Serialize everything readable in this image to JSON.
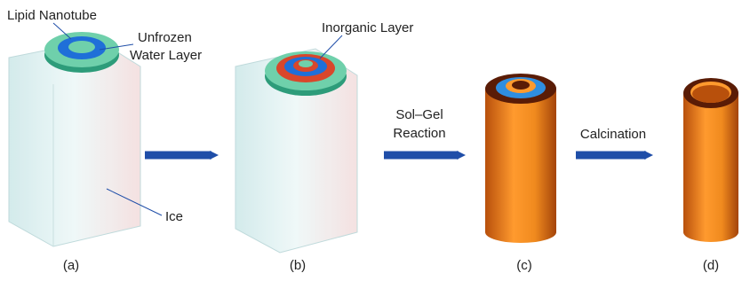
{
  "panels": [
    {
      "label": "(a)",
      "annotations": [
        "Lipid Nanotube",
        "Unfrozen",
        "Water Layer",
        "Ice"
      ]
    },
    {
      "label": "(b)",
      "annotations": [
        "Inorganic Layer"
      ]
    },
    {
      "label": "(c)"
    },
    {
      "label": "(d)"
    }
  ],
  "steps": [
    {
      "lines": [
        "Sol–Gel",
        "Reaction"
      ]
    },
    {
      "lines": [
        "Calcination"
      ]
    }
  ]
}
